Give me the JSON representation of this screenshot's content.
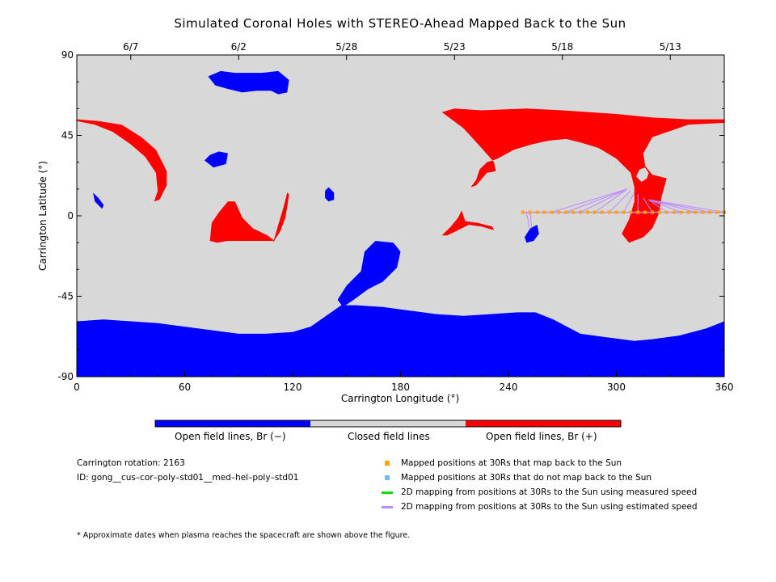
{
  "title": "Simulated Coronal Holes with STEREO-Ahead Mapped Back to the Sun",
  "colors": {
    "open_negative": "#0000ff",
    "closed": "#d8d8d8",
    "open_positive": "#ff0000",
    "mapped": "#ffa500",
    "not_mapped": "#77bbee",
    "measured": "#00dd00",
    "estimated": "#bb88ff"
  },
  "colorbar": {
    "labels": [
      "Open field lines, Br (−)",
      "Closed field lines",
      "Open field lines, Br (+)"
    ]
  },
  "info": {
    "carrington_rotation": "Carrington rotation: 2163",
    "id": "ID: gong__cus–cor–poly–std01__med–hel–poly–std01"
  },
  "legend": [
    {
      "label": "Mapped positions at 30Rs that map back to the Sun",
      "marker": "square",
      "color": "#ffa500"
    },
    {
      "label": "Mapped positions at 30Rs that do not map back to the Sun",
      "marker": "square",
      "color": "#77bbee"
    },
    {
      "label": "2D mapping from positions at 30Rs to the Sun using measured speed",
      "marker": "line",
      "color": "#00dd00"
    },
    {
      "label": "2D mapping from positions at 30Rs to the Sun using estimated speed",
      "marker": "line",
      "color": "#bb88ff"
    }
  ],
  "footnote": "* Approximate dates when plasma reaches the spacecraft are shown above the figure.",
  "chart_data": {
    "type": "map",
    "title": "Simulated Coronal Holes with STEREO-Ahead Mapped Back to the Sun",
    "xlabel": "Carrington Longitude (°)",
    "ylabel": "Carrington Latitude (°)",
    "xlim": [
      0,
      360
    ],
    "ylim": [
      -90,
      90
    ],
    "x_ticks": [
      0,
      60,
      120,
      180,
      240,
      300,
      360
    ],
    "y_ticks": [
      -90,
      -45,
      0,
      45,
      90
    ],
    "top_axis": {
      "dates": [
        {
          "label": "6/7",
          "lon": 30
        },
        {
          "label": "6/2",
          "lon": 90
        },
        {
          "label": "5/28",
          "lon": 150
        },
        {
          "label": "5/23",
          "lon": 210
        },
        {
          "label": "5/18",
          "lon": 270
        },
        {
          "label": "5/13",
          "lon": 330
        }
      ]
    },
    "regions": {
      "negative": [
        [
          [
            0,
            -59
          ],
          [
            15,
            -58
          ],
          [
            30,
            -59
          ],
          [
            45,
            -60
          ],
          [
            60,
            -62
          ],
          [
            75,
            -64
          ],
          [
            90,
            -66
          ],
          [
            105,
            -66
          ],
          [
            120,
            -65
          ],
          [
            130,
            -62
          ],
          [
            140,
            -55
          ],
          [
            147,
            -50
          ],
          [
            155,
            -50
          ],
          [
            170,
            -51
          ],
          [
            185,
            -53
          ],
          [
            200,
            -55
          ],
          [
            215,
            -56
          ],
          [
            230,
            -55
          ],
          [
            245,
            -54
          ],
          [
            255,
            -54
          ],
          [
            265,
            -58
          ],
          [
            280,
            -66
          ],
          [
            295,
            -68
          ],
          [
            310,
            -70
          ],
          [
            320,
            -69
          ],
          [
            335,
            -67
          ],
          [
            350,
            -63
          ],
          [
            360,
            -59
          ],
          [
            360,
            -90
          ],
          [
            0,
            -90
          ]
        ],
        [
          [
            145,
            -47
          ],
          [
            150,
            -39
          ],
          [
            158,
            -31
          ],
          [
            160,
            -20
          ],
          [
            166,
            -14
          ],
          [
            176,
            -15
          ],
          [
            180,
            -20
          ],
          [
            178,
            -29
          ],
          [
            170,
            -37
          ],
          [
            162,
            -41
          ],
          [
            154,
            -47
          ],
          [
            148,
            -51
          ]
        ],
        [
          [
            73,
            78
          ],
          [
            77,
            73
          ],
          [
            84,
            71
          ],
          [
            92,
            69
          ],
          [
            100,
            70
          ],
          [
            108,
            70
          ],
          [
            112,
            68
          ],
          [
            117,
            69
          ],
          [
            118,
            76
          ],
          [
            112,
            81
          ],
          [
            103,
            80
          ],
          [
            95,
            80
          ],
          [
            88,
            80
          ],
          [
            80,
            81
          ]
        ],
        [
          [
            71,
            31
          ],
          [
            74,
            34
          ],
          [
            79,
            36
          ],
          [
            84,
            35
          ],
          [
            83,
            29
          ],
          [
            76,
            27
          ]
        ],
        [
          [
            9,
            13
          ],
          [
            12,
            10
          ],
          [
            15,
            6
          ],
          [
            14,
            4
          ],
          [
            10,
            8
          ]
        ],
        [
          [
            138,
            14
          ],
          [
            140,
            16
          ],
          [
            143,
            13
          ],
          [
            143,
            9
          ],
          [
            140,
            8
          ],
          [
            138,
            10
          ]
        ],
        [
          [
            249,
            -12
          ],
          [
            252,
            -7
          ],
          [
            256,
            -5
          ],
          [
            257,
            -10
          ],
          [
            254,
            -14
          ],
          [
            250,
            -15
          ]
        ]
      ],
      "positive": [
        [
          [
            0,
            54
          ],
          [
            12,
            53
          ],
          [
            25,
            51
          ],
          [
            36,
            44
          ],
          [
            44,
            37
          ],
          [
            50,
            25
          ],
          [
            50,
            17
          ],
          [
            46,
            9
          ],
          [
            43,
            8
          ],
          [
            45,
            14
          ],
          [
            44,
            24
          ],
          [
            38,
            33
          ],
          [
            30,
            40
          ],
          [
            20,
            47
          ],
          [
            10,
            51
          ],
          [
            0,
            53
          ]
        ],
        [
          [
            225,
            59
          ],
          [
            250,
            60
          ],
          [
            270,
            59
          ],
          [
            285,
            58
          ],
          [
            300,
            57
          ],
          [
            320,
            55
          ],
          [
            340,
            54
          ],
          [
            360,
            54
          ],
          [
            360,
            52
          ],
          [
            340,
            51
          ],
          [
            320,
            44
          ],
          [
            315,
            35
          ],
          [
            316,
            28
          ],
          [
            320,
            23
          ],
          [
            328,
            21
          ],
          [
            325,
            10
          ],
          [
            324,
            2
          ],
          [
            320,
            -7
          ],
          [
            315,
            -12
          ],
          [
            307,
            -15
          ],
          [
            303,
            -10
          ],
          [
            307,
            -2
          ],
          [
            310,
            8
          ],
          [
            310,
            16
          ],
          [
            308,
            24
          ],
          [
            300,
            32
          ],
          [
            290,
            38
          ],
          [
            280,
            41
          ],
          [
            272,
            43
          ],
          [
            262,
            42
          ],
          [
            253,
            40
          ],
          [
            243,
            37
          ],
          [
            234,
            32
          ],
          [
            228,
            30
          ],
          [
            224,
            26
          ],
          [
            222,
            20
          ],
          [
            219,
            16
          ],
          [
            222,
            17
          ],
          [
            228,
            24
          ],
          [
            233,
            25
          ],
          [
            232,
            30
          ],
          [
            225,
            38
          ],
          [
            215,
            49
          ],
          [
            203,
            58
          ],
          [
            210,
            60
          ]
        ],
        [
          [
            74,
            -14
          ],
          [
            75,
            -4
          ],
          [
            79,
            2
          ],
          [
            84,
            8
          ],
          [
            88,
            8
          ],
          [
            92,
            -1
          ],
          [
            98,
            -7
          ],
          [
            106,
            -11
          ],
          [
            110,
            -14
          ],
          [
            96,
            -14
          ],
          [
            84,
            -14
          ],
          [
            78,
            -15
          ]
        ],
        [
          [
            109,
            -15
          ],
          [
            113,
            -9
          ],
          [
            116,
            -1
          ],
          [
            117,
            5
          ],
          [
            118,
            12
          ],
          [
            117,
            13
          ],
          [
            115,
            5
          ],
          [
            112,
            -5
          ],
          [
            110,
            -12
          ]
        ],
        [
          [
            203,
            -11
          ],
          [
            208,
            -6
          ],
          [
            212,
            -1
          ],
          [
            214,
            3
          ],
          [
            216,
            -3
          ],
          [
            223,
            -4
          ],
          [
            231,
            -6
          ],
          [
            232,
            -8
          ],
          [
            225,
            -6
          ],
          [
            218,
            -5
          ],
          [
            212,
            -8
          ],
          [
            206,
            -11
          ]
        ]
      ],
      "closed_holes": [
        [
          [
            311,
            22
          ],
          [
            313,
            26
          ],
          [
            316,
            27
          ],
          [
            318,
            24
          ],
          [
            317,
            21
          ],
          [
            314,
            19
          ]
        ]
      ]
    },
    "stereo_track": {
      "lon": [
        248,
        252,
        256,
        260,
        264,
        268,
        272,
        276,
        280,
        284,
        288,
        292,
        296,
        300,
        304,
        308,
        312,
        316,
        320,
        324,
        328,
        332,
        336,
        340,
        344,
        348,
        352,
        356,
        360
      ],
      "lat": [
        2,
        2,
        2,
        2,
        2,
        2,
        2,
        2,
        2,
        2,
        2,
        2,
        2,
        2,
        2,
        2,
        2,
        2,
        2,
        2,
        2,
        2,
        2,
        2,
        2,
        2,
        2,
        2,
        2
      ]
    },
    "estimated_mappings": [
      {
        "from": [
          264,
          2
        ],
        "to": [
          306,
          15
        ]
      },
      {
        "from": [
          272,
          2
        ],
        "to": [
          306,
          15
        ]
      },
      {
        "from": [
          280,
          2
        ],
        "to": [
          306,
          15
        ]
      },
      {
        "from": [
          288,
          2
        ],
        "to": [
          306,
          15
        ]
      },
      {
        "from": [
          296,
          2
        ],
        "to": [
          308,
          14
        ]
      },
      {
        "from": [
          304,
          2
        ],
        "to": [
          310,
          13
        ]
      },
      {
        "from": [
          312,
          2
        ],
        "to": [
          312,
          12
        ]
      },
      {
        "from": [
          320,
          2
        ],
        "to": [
          315,
          10
        ]
      },
      {
        "from": [
          328,
          2
        ],
        "to": [
          318,
          9
        ]
      },
      {
        "from": [
          336,
          2
        ],
        "to": [
          318,
          9
        ]
      },
      {
        "from": [
          344,
          2
        ],
        "to": [
          318,
          9
        ]
      },
      {
        "from": [
          352,
          2
        ],
        "to": [
          318,
          9
        ]
      },
      {
        "from": [
          360,
          2
        ],
        "to": [
          318,
          9
        ]
      },
      {
        "from": [
          250,
          2
        ],
        "to": [
          252,
          -8
        ]
      },
      {
        "from": [
          252,
          2
        ],
        "to": [
          253,
          -7
        ]
      }
    ]
  }
}
